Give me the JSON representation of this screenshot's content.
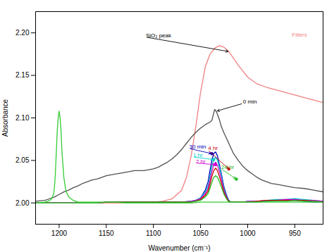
{
  "chart_data": {
    "type": "line",
    "xlabel": "Wavenumber (cm⁻¹)",
    "ylabel": "Absorbance",
    "xlim": [
      1225,
      920
    ],
    "ylim": [
      1.975,
      2.225
    ],
    "xticks": [
      1200,
      1150,
      1100,
      1050,
      1000,
      950
    ],
    "yticks": [
      {
        "value": 2.0,
        "label": "2.00"
      },
      2.05,
      {
        "value": 2.1,
        "label": "2.10"
      },
      2.15,
      {
        "value": 2.2,
        "label": "2.20"
      }
    ],
    "series": [
      {
        "color": "#f08080",
        "x": [
          1225,
          1220,
          1210,
          1200,
          1190,
          1180,
          1170,
          1160,
          1150,
          1140,
          1130,
          1120,
          1110,
          1100,
          1090,
          1080,
          1070,
          1065,
          1060,
          1055,
          1050,
          1045,
          1040,
          1035,
          1030,
          1025,
          1020,
          1015,
          1010,
          1005,
          1000,
          990,
          980,
          970,
          960,
          950,
          940,
          930,
          920
        ],
        "values": [
          2.0,
          2.0,
          2.0,
          2.0,
          2.0,
          2.0,
          2.0,
          2.0,
          2.0,
          2.0,
          2.0,
          2.0,
          2.0,
          2.001,
          2.002,
          2.005,
          2.015,
          2.03,
          2.055,
          2.09,
          2.13,
          2.16,
          2.175,
          2.182,
          2.185,
          2.183,
          2.178,
          2.17,
          2.162,
          2.155,
          2.148,
          2.14,
          2.136,
          2.133,
          2.13,
          2.127,
          2.124,
          2.121,
          2.118
        ]
      },
      {
        "color": "#505050",
        "x": [
          1225,
          1215,
          1210,
          1205,
          1200,
          1195,
          1190,
          1185,
          1180,
          1175,
          1170,
          1165,
          1160,
          1155,
          1150,
          1145,
          1140,
          1135,
          1130,
          1125,
          1120,
          1115,
          1110,
          1105,
          1100,
          1095,
          1090,
          1085,
          1080,
          1075,
          1070,
          1065,
          1060,
          1055,
          1050,
          1045,
          1040,
          1038,
          1035,
          1033,
          1030,
          1028,
          1025,
          1022,
          1020,
          1015,
          1010,
          1005,
          1000,
          995,
          990,
          985,
          980,
          975,
          970,
          965,
          960,
          950,
          940,
          930,
          920
        ],
        "values": [
          2.002,
          2.003,
          2.005,
          2.007,
          2.01,
          2.013,
          2.015,
          2.018,
          2.02,
          2.023,
          2.025,
          2.027,
          2.028,
          2.03,
          2.032,
          2.033,
          2.034,
          2.035,
          2.036,
          2.037,
          2.038,
          2.038,
          2.038,
          2.039,
          2.04,
          2.042,
          2.045,
          2.048,
          2.052,
          2.057,
          2.063,
          2.07,
          2.077,
          2.083,
          2.088,
          2.092,
          2.095,
          2.097,
          2.11,
          2.107,
          2.098,
          2.09,
          2.082,
          2.075,
          2.07,
          2.058,
          2.05,
          2.043,
          2.038,
          2.034,
          2.03,
          2.027,
          2.025,
          2.023,
          2.022,
          2.021,
          2.02,
          2.018,
          2.017,
          2.015,
          2.013
        ]
      },
      {
        "color": "#0000bb",
        "x": [
          1225,
          1210,
          1200,
          1190,
          1180,
          1170,
          1160,
          1150,
          1140,
          1130,
          1120,
          1110,
          1100,
          1090,
          1080,
          1070,
          1060,
          1055,
          1050,
          1045,
          1042,
          1040,
          1038,
          1036,
          1034,
          1032,
          1030,
          1028,
          1025,
          1022,
          1020,
          1018,
          1015,
          1010,
          1005,
          1000,
          990,
          980,
          970,
          960,
          950,
          940,
          930,
          920
        ],
        "values": [
          2.0,
          2.0,
          2.0,
          2.0,
          2.0,
          2.0,
          2.0,
          2.001,
          2.001,
          2.001,
          2.001,
          2.001,
          2.001,
          2.001,
          2.001,
          2.001,
          2.002,
          2.003,
          2.006,
          2.015,
          2.025,
          2.038,
          2.05,
          2.058,
          2.06,
          2.055,
          2.045,
          2.035,
          2.018,
          2.008,
          2.003,
          2.001,
          2.001,
          2.001,
          2.001,
          2.001,
          2.001,
          2.002,
          2.003,
          2.003,
          2.003,
          2.002,
          2.001,
          2.001
        ]
      },
      {
        "color": "#00cccc",
        "x": [
          1225,
          1210,
          1200,
          1190,
          1180,
          1170,
          1160,
          1150,
          1140,
          1130,
          1120,
          1110,
          1100,
          1090,
          1080,
          1070,
          1060,
          1055,
          1050,
          1045,
          1042,
          1040,
          1038,
          1036,
          1034,
          1032,
          1030,
          1028,
          1025,
          1022,
          1020,
          1018,
          1015,
          1010,
          1005,
          1000,
          990,
          980,
          970,
          960,
          950,
          940,
          930,
          920
        ],
        "values": [
          2.0,
          2.0,
          2.0,
          2.0,
          2.0,
          2.0,
          2.0,
          2.001,
          2.001,
          2.001,
          2.001,
          2.001,
          2.001,
          2.001,
          2.001,
          2.001,
          2.002,
          2.003,
          2.006,
          2.013,
          2.02,
          2.032,
          2.043,
          2.051,
          2.054,
          2.05,
          2.042,
          2.033,
          2.016,
          2.007,
          2.003,
          2.001,
          2.001,
          2.001,
          2.001,
          2.002,
          2.002,
          2.003,
          2.004,
          2.004,
          2.005,
          2.004,
          2.003,
          2.002
        ]
      },
      {
        "color": "#cc00cc",
        "x": [
          1225,
          1210,
          1200,
          1190,
          1180,
          1170,
          1160,
          1150,
          1140,
          1130,
          1120,
          1110,
          1100,
          1090,
          1080,
          1070,
          1060,
          1055,
          1050,
          1045,
          1042,
          1040,
          1038,
          1036,
          1034,
          1032,
          1030,
          1028,
          1025,
          1022,
          1020,
          1018,
          1015,
          1010,
          1005,
          1000,
          990,
          980,
          970,
          960,
          950,
          940,
          930,
          920
        ],
        "values": [
          2.0,
          2.0,
          2.0,
          2.0,
          2.0,
          2.0,
          2.0,
          2.001,
          2.001,
          2.001,
          2.001,
          2.001,
          2.001,
          2.001,
          2.001,
          2.001,
          2.002,
          2.003,
          2.005,
          2.011,
          2.017,
          2.027,
          2.037,
          2.045,
          2.048,
          2.044,
          2.037,
          2.029,
          2.014,
          2.006,
          2.002,
          2.001,
          2.001,
          2.001,
          2.001,
          2.002,
          2.002,
          2.003,
          2.003,
          2.004,
          2.004,
          2.003,
          2.003,
          2.002
        ]
      },
      {
        "color": "#cc0000",
        "x": [
          1225,
          1210,
          1200,
          1190,
          1180,
          1170,
          1160,
          1150,
          1140,
          1130,
          1120,
          1110,
          1100,
          1090,
          1080,
          1070,
          1060,
          1055,
          1050,
          1045,
          1042,
          1040,
          1038,
          1036,
          1034,
          1032,
          1030,
          1028,
          1025,
          1022,
          1020,
          1018,
          1015,
          1010,
          1005,
          1000,
          990,
          980,
          970,
          960,
          950,
          940,
          930,
          920
        ],
        "values": [
          2.0,
          2.0,
          2.0,
          2.0,
          2.0,
          2.0,
          2.0,
          2.001,
          2.001,
          2.001,
          2.001,
          2.001,
          2.001,
          2.001,
          2.001,
          2.001,
          2.001,
          2.002,
          2.004,
          2.009,
          2.014,
          2.022,
          2.031,
          2.038,
          2.041,
          2.038,
          2.031,
          2.024,
          2.012,
          2.005,
          2.002,
          2.001,
          2.001,
          2.001,
          2.001,
          2.001,
          2.002,
          2.003,
          2.003,
          2.003,
          2.003,
          2.003,
          2.002,
          2.001
        ]
      },
      {
        "color": "#22bb22",
        "x": [
          1225,
          1210,
          1200,
          1190,
          1180,
          1170,
          1160,
          1150,
          1140,
          1130,
          1120,
          1110,
          1100,
          1090,
          1080,
          1070,
          1060,
          1055,
          1050,
          1045,
          1042,
          1040,
          1038,
          1036,
          1034,
          1032,
          1030,
          1028,
          1025,
          1022,
          1020,
          1018,
          1015,
          1010,
          1005,
          1000,
          990,
          980,
          970,
          960,
          950,
          940,
          930,
          920
        ],
        "values": [
          2.0,
          2.0,
          2.0,
          2.0,
          2.0,
          2.0,
          2.0,
          2.001,
          2.001,
          2.001,
          2.001,
          2.001,
          2.001,
          2.001,
          2.001,
          2.001,
          2.001,
          2.002,
          2.003,
          2.007,
          2.011,
          2.017,
          2.024,
          2.03,
          2.032,
          2.03,
          2.025,
          2.019,
          2.01,
          2.004,
          2.001,
          2.001,
          2.001,
          2.001,
          2.001,
          2.001,
          2.001,
          2.002,
          2.002,
          2.002,
          2.003,
          2.002,
          2.002,
          2.001
        ]
      },
      {
        "color": "#33cc33",
        "x": [
          1225,
          1215,
          1212,
          1210,
          1208,
          1206,
          1205,
          1204,
          1203,
          1202,
          1201,
          1200,
          1199,
          1198,
          1197,
          1195,
          1193,
          1190,
          1185,
          1180,
          1170,
          1160,
          1150,
          1140,
          1130,
          1120,
          1110,
          1100,
          1090,
          1080,
          1070,
          1060,
          1050,
          1040,
          1030,
          1020,
          1010,
          1000,
          990,
          980,
          970,
          960,
          950,
          940,
          930,
          920
        ],
        "values": [
          2.0,
          2.001,
          2.002,
          2.003,
          2.005,
          2.01,
          2.018,
          2.035,
          2.06,
          2.085,
          2.1,
          2.108,
          2.1,
          2.085,
          2.06,
          2.03,
          2.015,
          2.007,
          2.003,
          2.001,
          2.001,
          2.001,
          2.001,
          2.001,
          2.0,
          2.0,
          2.0,
          2.0,
          2.0,
          2.0,
          2.0,
          2.0,
          2.001,
          2.001,
          2.001,
          2.001,
          2.001,
          2.001,
          2.001,
          2.001,
          2.001,
          2.001,
          2.001,
          2.001,
          2.001,
          2.001
        ]
      }
    ],
    "annotations": [
      {
        "text": "SiO₂ peak",
        "x": 1020,
        "y": 2.178,
        "text_x": 1108,
        "text_y": 2.195,
        "color": "black"
      },
      {
        "text": "0 min",
        "x": 1033,
        "y": 2.108,
        "text_x": 1005,
        "text_y": 2.117,
        "color": "black"
      },
      {
        "text": "30 min",
        "x": 1038,
        "y": 2.058,
        "text_x": 1062,
        "text_y": 2.064,
        "color": "#0000bb",
        "marker": "dot"
      },
      {
        "text": "1 hr",
        "x": 1036,
        "y": 2.051,
        "text_x": 1058,
        "text_y": 2.054,
        "color": "#00cccc",
        "marker": "dot"
      },
      {
        "text": "2 hr",
        "x": 1034,
        "y": 2.045,
        "text_x": 1055,
        "text_y": 2.047,
        "color": "#cc00cc",
        "marker": "dot"
      },
      {
        "text": "4 hr",
        "x": 1020,
        "y": 2.04,
        "text_x": 1042,
        "text_y": 2.062,
        "color": "#cc0000",
        "marker": "dot"
      },
      {
        "text": "24 hr",
        "x": 1012,
        "y": 2.028,
        "text_x": 1028,
        "text_y": 2.04,
        "color": "#22bb22",
        "marker": "dot"
      },
      {
        "text": "Fillers",
        "text_x": 953,
        "text_y": 2.196,
        "color": "#f08080"
      }
    ]
  }
}
